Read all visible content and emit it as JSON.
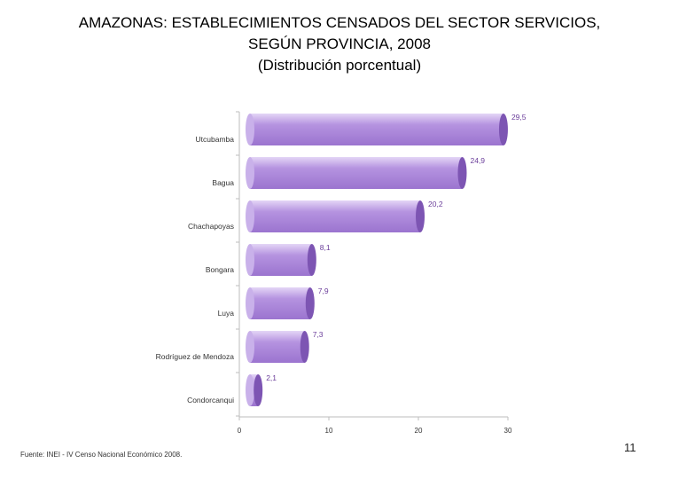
{
  "title": {
    "line1": "AMAZONAS: ESTABLECIMIENTOS CENSADOS DEL SECTOR SERVICIOS,",
    "line2": "SEGÚN PROVINCIA, 2008",
    "line3": "(Distribución porcentual)"
  },
  "chart_data": {
    "type": "bar",
    "orientation": "horizontal",
    "categories": [
      "Utcubamba",
      "Bagua",
      "Chachapoyas",
      "Bongara",
      "Luya",
      "Rodríguez de Mendoza",
      "Condorcanqui"
    ],
    "values": [
      29.5,
      24.9,
      20.2,
      8.1,
      7.9,
      7.3,
      2.1
    ],
    "data_labels": [
      "29,5",
      "24,9",
      "20,2",
      "8,1",
      "7,9",
      "7,3",
      "2,1"
    ],
    "xlim": [
      0,
      30
    ],
    "x_ticks": [
      0,
      10,
      20,
      30
    ],
    "x_tick_labels": [
      "0",
      "10",
      "20",
      "30"
    ],
    "grid": false,
    "legend": "none",
    "bar_color": "#b593e0",
    "bar_end_color": "#7d55b3",
    "label_color": "#6a3d9a"
  },
  "footer": {
    "source": "Fuente: INEI - IV Censo Nacional Económico 2008."
  },
  "page_number": "11"
}
